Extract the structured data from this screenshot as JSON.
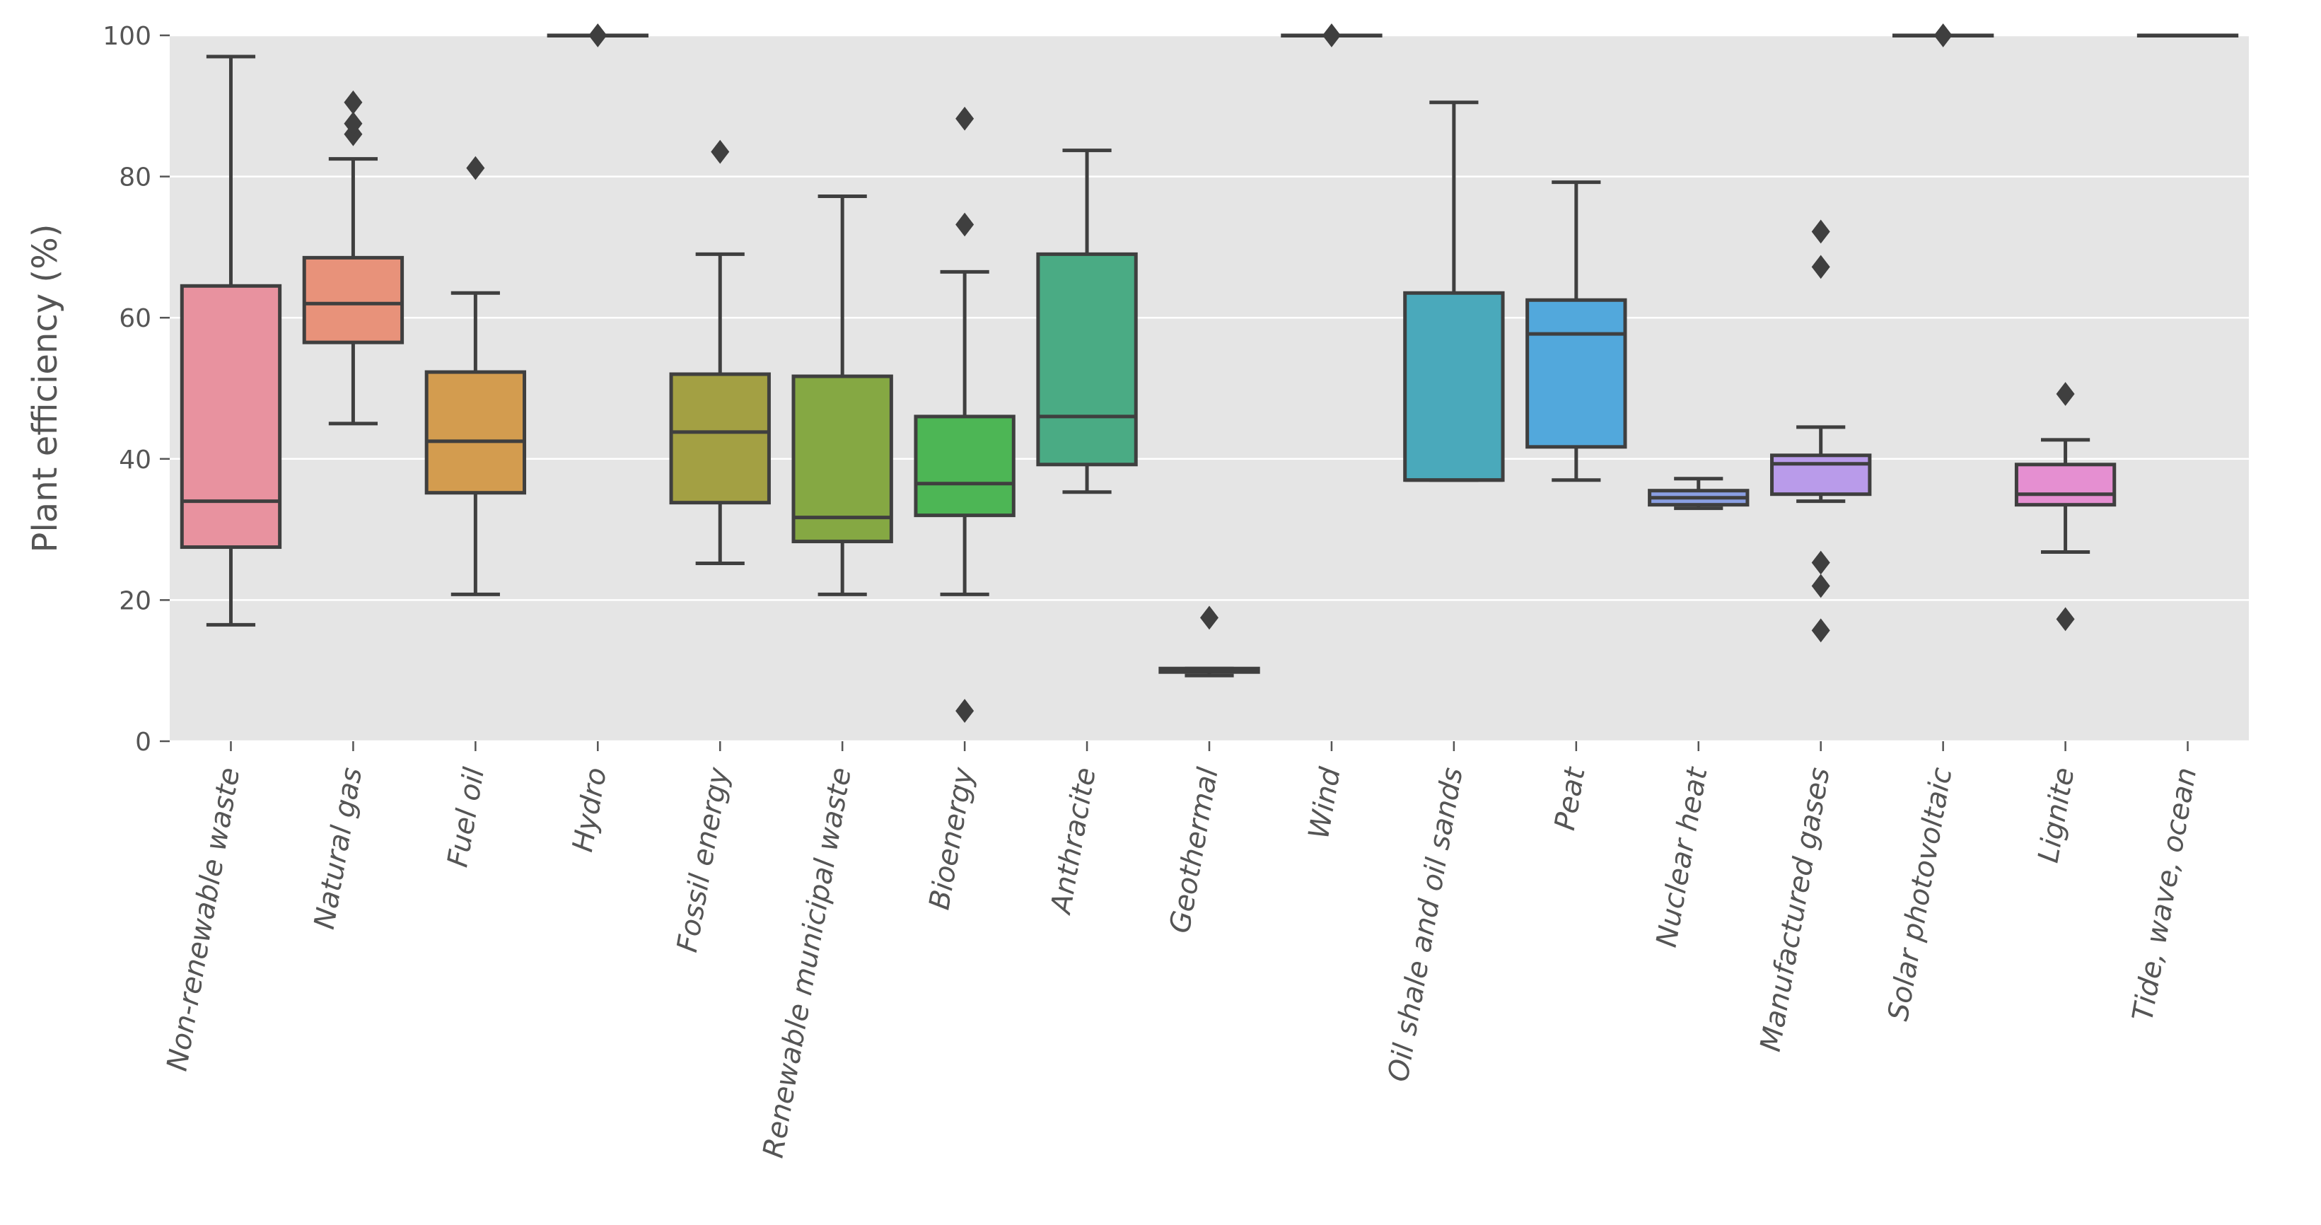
{
  "chart_data": {
    "type": "box",
    "title": "",
    "xlabel": "",
    "ylabel": "Plant efficiency (%)",
    "ylim": [
      0,
      100
    ],
    "yticks": [
      0,
      20,
      40,
      60,
      80,
      100
    ],
    "grid": true,
    "categories": [
      "Non-renewable waste",
      "Natural gas",
      "Fuel oil",
      "Hydro",
      "Fossil energy",
      "Renewable municipal waste",
      "Bioenergy",
      "Anthracite",
      "Geothermal",
      "Wind",
      "Oil shale and oil sands",
      "Peat",
      "Nuclear heat",
      "Manufactured gases",
      "Solar photovoltaic",
      "Lignite",
      "Tide, wave, ocean"
    ],
    "boxes": [
      {
        "category": "Non-renewable waste",
        "whisker_low": 16.5,
        "q1": 27.5,
        "median": 34,
        "q3": 64.5,
        "whisker_high": 97,
        "outliers": [],
        "color": "#e8929f"
      },
      {
        "category": "Natural gas",
        "whisker_low": 45,
        "q1": 56.5,
        "median": 62,
        "q3": 68.5,
        "whisker_high": 82.5,
        "outliers": [
          86,
          87.5,
          90.5
        ],
        "color": "#e8927a"
      },
      {
        "category": "Fuel oil",
        "whisker_low": 20.8,
        "q1": 35.2,
        "median": 42.5,
        "q3": 52.3,
        "whisker_high": 63.5,
        "outliers": [
          81.2
        ],
        "color": "#d39c4f"
      },
      {
        "category": "Hydro",
        "whisker_low": 100,
        "q1": 100,
        "median": 100,
        "q3": 100,
        "whisker_high": 100,
        "outliers": [
          100
        ],
        "color": "#b8a34a"
      },
      {
        "category": "Fossil energy",
        "whisker_low": 25.2,
        "q1": 33.8,
        "median": 43.8,
        "q3": 52,
        "whisker_high": 69,
        "outliers": [
          83.5
        ],
        "color": "#a3a043"
      },
      {
        "category": "Renewable municipal waste",
        "whisker_low": 20.8,
        "q1": 28.3,
        "median": 31.7,
        "q3": 51.7,
        "whisker_high": 77.2,
        "outliers": [],
        "color": "#85a843"
      },
      {
        "category": "Bioenergy",
        "whisker_low": 20.8,
        "q1": 32,
        "median": 36.5,
        "q3": 46,
        "whisker_high": 66.5,
        "outliers": [
          4.3,
          73.2,
          88.2
        ],
        "color": "#4db655"
      },
      {
        "category": "Anthracite",
        "whisker_low": 35.3,
        "q1": 39.2,
        "median": 46,
        "q3": 69,
        "whisker_high": 83.7,
        "outliers": [],
        "color": "#4aab84"
      },
      {
        "category": "Geothermal",
        "whisker_low": 9.3,
        "q1": 9.8,
        "median": 10,
        "q3": 10.3,
        "whisker_high": 10.3,
        "outliers": [
          17.5
        ],
        "color": "#49aa92"
      },
      {
        "category": "Wind",
        "whisker_low": 100,
        "q1": 100,
        "median": 100,
        "q3": 100,
        "whisker_high": 100,
        "outliers": [
          100
        ],
        "color": "#4aa8a5"
      },
      {
        "category": "Oil shale and oil sands",
        "whisker_low": 37,
        "q1": 37,
        "median": 37,
        "q3": 63.5,
        "whisker_high": 90.5,
        "outliers": [],
        "color": "#4aa9bb"
      },
      {
        "category": "Peat",
        "whisker_low": 37,
        "q1": 41.7,
        "median": 57.7,
        "q3": 62.5,
        "whisker_high": 79.2,
        "outliers": [],
        "color": "#52a8dc"
      },
      {
        "category": "Nuclear heat",
        "whisker_low": 33,
        "q1": 33.5,
        "median": 34.5,
        "q3": 35.5,
        "whisker_high": 37.2,
        "outliers": [],
        "color": "#8a9fe2"
      },
      {
        "category": "Manufactured gases",
        "whisker_low": 34,
        "q1": 35,
        "median": 39.3,
        "q3": 40.5,
        "whisker_high": 44.5,
        "outliers": [
          15.7,
          22,
          25.3,
          67.2,
          72.2
        ],
        "color": "#b99bea"
      },
      {
        "category": "Solar photovoltaic",
        "whisker_low": 100,
        "q1": 100,
        "median": 100,
        "q3": 100,
        "whisker_high": 100,
        "outliers": [
          100
        ],
        "color": "#dd8ce0"
      },
      {
        "category": "Lignite",
        "whisker_low": 26.8,
        "q1": 33.5,
        "median": 35,
        "q3": 39.2,
        "whisker_high": 42.7,
        "outliers": [
          17.3,
          49.2
        ],
        "color": "#e58fd1"
      },
      {
        "category": "Tide, wave, ocean",
        "whisker_low": 100,
        "q1": 100,
        "median": 100,
        "q3": 100,
        "whisker_high": 100,
        "outliers": [],
        "color": "#e990b4"
      }
    ]
  }
}
